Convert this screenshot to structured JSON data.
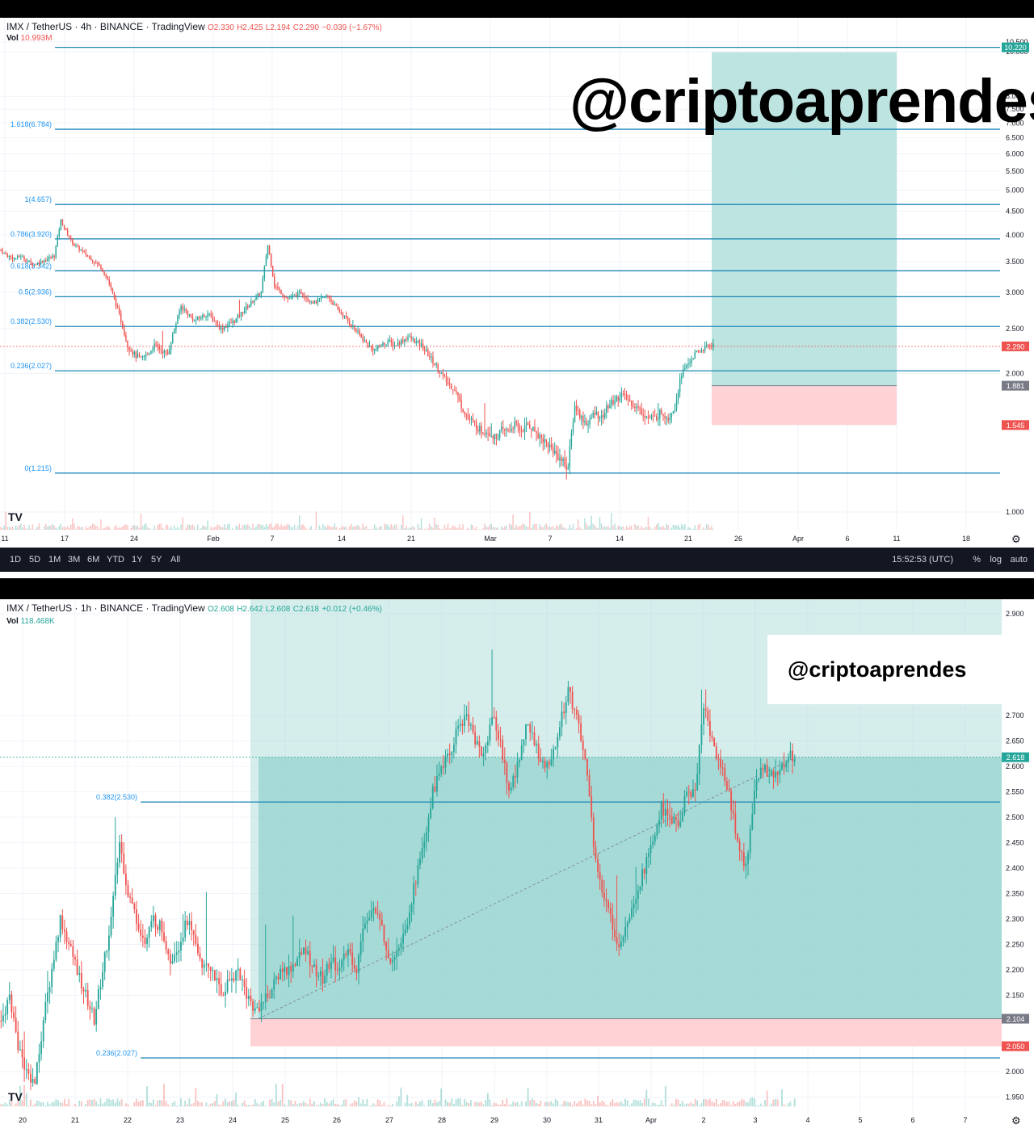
{
  "colors": {
    "up": "#26a69a",
    "down": "#ef5350",
    "fib": "#2196f3",
    "profit": "#b2dfdb",
    "loss": "#ffcdd2"
  },
  "chart_data": [
    {
      "type": "candlestick",
      "symbol": "IMX / TetherUS",
      "interval": "4h",
      "exchange": "BINANCE",
      "source": "TradingView",
      "ohlc": {
        "o": "O2.330",
        "h": "H2.425",
        "l": "L2.194",
        "c": "C2.290",
        "change": "−0.039 (−1.67%)"
      },
      "volume_label": "Vol",
      "volume_value": "10.993M",
      "watermark": "@criptoaprendes",
      "y_scale": "log",
      "y_ticks": [
        "10.500",
        "10.000",
        "8.000",
        "7.500",
        "7.000",
        "6.500",
        "6.000",
        "5.500",
        "5.000",
        "4.500",
        "4.000",
        "3.500",
        "3.000",
        "2.500",
        "2.000",
        "1.000"
      ],
      "x_ticks": [
        "11",
        "17",
        "24",
        "Feb",
        "7",
        "14",
        "21",
        "Mar",
        "7",
        "14",
        "21",
        "26",
        "Apr",
        "6",
        "11",
        "18"
      ],
      "fib_levels": [
        {
          "label": "1.618(6.784)",
          "value": 6.784
        },
        {
          "label": "1(4.657)",
          "value": 4.657
        },
        {
          "label": "0.786(3.920)",
          "value": 3.92
        },
        {
          "label": "0.618(3.342)",
          "value": 3.342
        },
        {
          "label": "0.5(2.936)",
          "value": 2.936
        },
        {
          "label": "0.382(2.530)",
          "value": 2.53
        },
        {
          "label": "0.236(2.027)",
          "value": 2.027
        },
        {
          "label": "0(1.215)",
          "value": 1.215
        }
      ],
      "target_line": {
        "value": 10.22,
        "label": "10.220"
      },
      "price_badges": [
        {
          "label": "10.220",
          "value": 10.22,
          "color": "#26a69a"
        },
        {
          "label": "2.290",
          "value": 2.29,
          "color": "#ef5350"
        },
        {
          "label": "1.881",
          "value": 1.881,
          "color": "#787b86"
        },
        {
          "label": "1.545",
          "value": 1.545,
          "color": "#ef5350"
        }
      ],
      "position": {
        "entry": 1.881,
        "target": 10.22,
        "stop": 1.545
      },
      "approx_closes": [
        3.7,
        3.6,
        3.55,
        3.6,
        3.5,
        3.45,
        3.5,
        3.55,
        3.6,
        4.3,
        4.0,
        3.8,
        3.7,
        3.6,
        3.5,
        3.4,
        3.2,
        2.9,
        2.6,
        2.3,
        2.2,
        2.15,
        2.2,
        2.3,
        2.25,
        2.2,
        2.5,
        2.8,
        2.7,
        2.6,
        2.65,
        2.7,
        2.6,
        2.5,
        2.55,
        2.6,
        2.7,
        2.8,
        2.9,
        3.0,
        3.8,
        3.1,
        3.0,
        2.9,
        2.95,
        3.0,
        2.9,
        2.85,
        2.9,
        2.95,
        2.8,
        2.7,
        2.6,
        2.5,
        2.4,
        2.3,
        2.25,
        2.3,
        2.35,
        2.3,
        2.35,
        2.4,
        2.35,
        2.3,
        2.2,
        2.1,
        2.0,
        1.9,
        1.85,
        1.7,
        1.6,
        1.55,
        1.5,
        1.5,
        1.45,
        1.5,
        1.5,
        1.55,
        1.5,
        1.55,
        1.5,
        1.45,
        1.4,
        1.35,
        1.3,
        1.25,
        1.7,
        1.6,
        1.55,
        1.65,
        1.6,
        1.7,
        1.75,
        1.8,
        1.75,
        1.7,
        1.65,
        1.6,
        1.6,
        1.65,
        1.6,
        1.7,
        2.0,
        2.1,
        2.2,
        2.25,
        2.3
      ]
    },
    {
      "type": "candlestick",
      "symbol": "IMX / TetherUS",
      "interval": "1h",
      "exchange": "BINANCE",
      "source": "TradingView",
      "ohlc": {
        "o": "O2.608",
        "h": "H2.642",
        "l": "L2.608",
        "c": "C2.618",
        "change": "+0.012 (+0.46%)"
      },
      "volume_label": "Vol",
      "volume_value": "118.468K",
      "watermark": "@criptoaprendes",
      "y_ticks": [
        "2.900",
        "2.700",
        "2.650",
        "2.600",
        "2.550",
        "2.500",
        "2.450",
        "2.400",
        "2.350",
        "2.300",
        "2.250",
        "2.200",
        "2.150",
        "2.000",
        "1.950"
      ],
      "x_ticks": [
        "20",
        "21",
        "22",
        "23",
        "24",
        "25",
        "26",
        "27",
        "28",
        "29",
        "30",
        "31",
        "Apr",
        "2",
        "3",
        "4",
        "5",
        "6",
        "7"
      ],
      "fib_levels": [
        {
          "label": "0.382(2.530)",
          "value": 2.53
        },
        {
          "label": "0.236(2.027)",
          "value": 2.027
        }
      ],
      "price_badges": [
        {
          "label": "2.618",
          "value": 2.618,
          "color": "#26a69a"
        },
        {
          "label": "2.104",
          "value": 2.104,
          "color": "#787b86"
        },
        {
          "label": "2.050",
          "value": 2.05,
          "color": "#ef5350"
        }
      ],
      "position": {
        "entry": 2.104,
        "target": "above 2.900",
        "stop": 2.05
      },
      "approx_closes": [
        2.1,
        2.15,
        2.05,
        2.0,
        1.98,
        2.1,
        2.2,
        2.3,
        2.25,
        2.2,
        2.15,
        2.1,
        2.2,
        2.3,
        2.45,
        2.35,
        2.3,
        2.25,
        2.3,
        2.28,
        2.22,
        2.25,
        2.3,
        2.25,
        2.2,
        2.2,
        2.15,
        2.18,
        2.2,
        2.15,
        2.12,
        2.14,
        2.16,
        2.2,
        2.2,
        2.22,
        2.24,
        2.2,
        2.18,
        2.22,
        2.2,
        2.24,
        2.2,
        2.3,
        2.32,
        2.28,
        2.22,
        2.25,
        2.3,
        2.38,
        2.45,
        2.55,
        2.6,
        2.62,
        2.68,
        2.7,
        2.65,
        2.62,
        2.7,
        2.65,
        2.55,
        2.6,
        2.68,
        2.65,
        2.6,
        2.62,
        2.68,
        2.75,
        2.7,
        2.62,
        2.45,
        2.35,
        2.3,
        2.25,
        2.3,
        2.35,
        2.4,
        2.45,
        2.52,
        2.5,
        2.48,
        2.55,
        2.55,
        2.72,
        2.65,
        2.6,
        2.55,
        2.45,
        2.4,
        2.55,
        2.6,
        2.58,
        2.6,
        2.62
      ]
    }
  ],
  "toolbar": {
    "timeframes": [
      "1D",
      "5D",
      "1M",
      "3M",
      "6M",
      "YTD",
      "1Y",
      "5Y",
      "All"
    ],
    "clock": "15:52:53 (UTC)",
    "pct": "%",
    "log": "log",
    "auto": "auto"
  }
}
